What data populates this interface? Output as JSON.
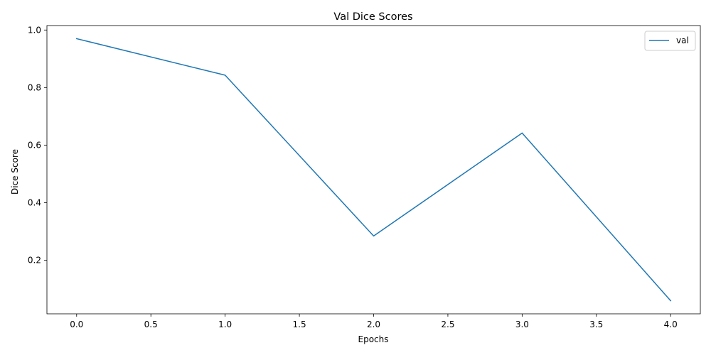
{
  "chart_data": {
    "type": "line",
    "title": "Val Dice Scores",
    "xlabel": "Epochs",
    "ylabel": "Dice Score",
    "xlim": [
      -0.2,
      4.2
    ],
    "ylim": [
      0.0135,
      1.0155
    ],
    "x_ticks": [
      0.0,
      0.5,
      1.0,
      1.5,
      2.0,
      2.5,
      3.0,
      3.5,
      4.0
    ],
    "x_tick_labels": [
      "0.0",
      "0.5",
      "1.0",
      "1.5",
      "2.0",
      "2.5",
      "3.0",
      "3.5",
      "4.0"
    ],
    "y_ticks": [
      0.2,
      0.4,
      0.6,
      0.8,
      1.0
    ],
    "y_tick_labels": [
      "0.2",
      "0.4",
      "0.6",
      "0.8",
      "1.0"
    ],
    "grid": false,
    "legend_position": "top-right",
    "series": [
      {
        "name": "val",
        "color": "#1f77b4",
        "x": [
          0,
          1,
          2,
          3,
          4
        ],
        "y": [
          0.97,
          0.843,
          0.284,
          0.642,
          0.059
        ]
      }
    ]
  }
}
